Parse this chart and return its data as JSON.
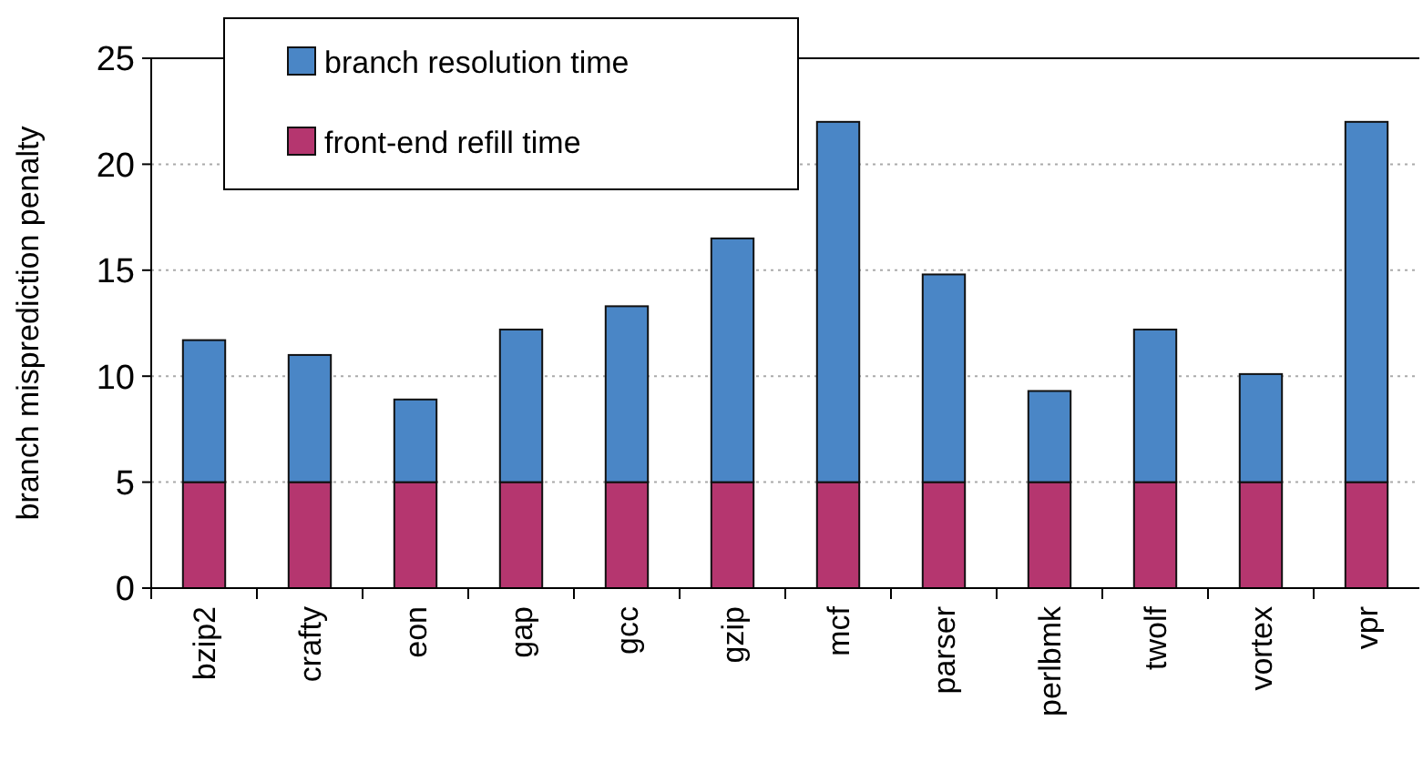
{
  "chart_data": {
    "type": "bar",
    "ylabel": "branch misprediction penalty",
    "categories": [
      "bzip2",
      "crafty",
      "eon",
      "gap",
      "gcc",
      "gzip",
      "mcf",
      "parser",
      "perlbmk",
      "twolf",
      "vortex",
      "vpr"
    ],
    "stacked": true,
    "series": [
      {
        "name": "front-end refill time",
        "color": "#b5366f",
        "values": [
          5,
          5,
          5,
          5,
          5,
          5,
          5,
          5,
          5,
          5,
          5,
          5
        ]
      },
      {
        "name": "branch resolution time",
        "color": "#4a86c6",
        "values": [
          6.7,
          6.0,
          3.9,
          7.2,
          8.3,
          11.5,
          17.0,
          9.8,
          4.3,
          7.2,
          5.1,
          17.0
        ]
      }
    ],
    "ylim": [
      0,
      25
    ],
    "yticks": [
      0,
      5,
      10,
      15,
      20,
      25
    ],
    "grid": "y",
    "legend": "top left"
  }
}
